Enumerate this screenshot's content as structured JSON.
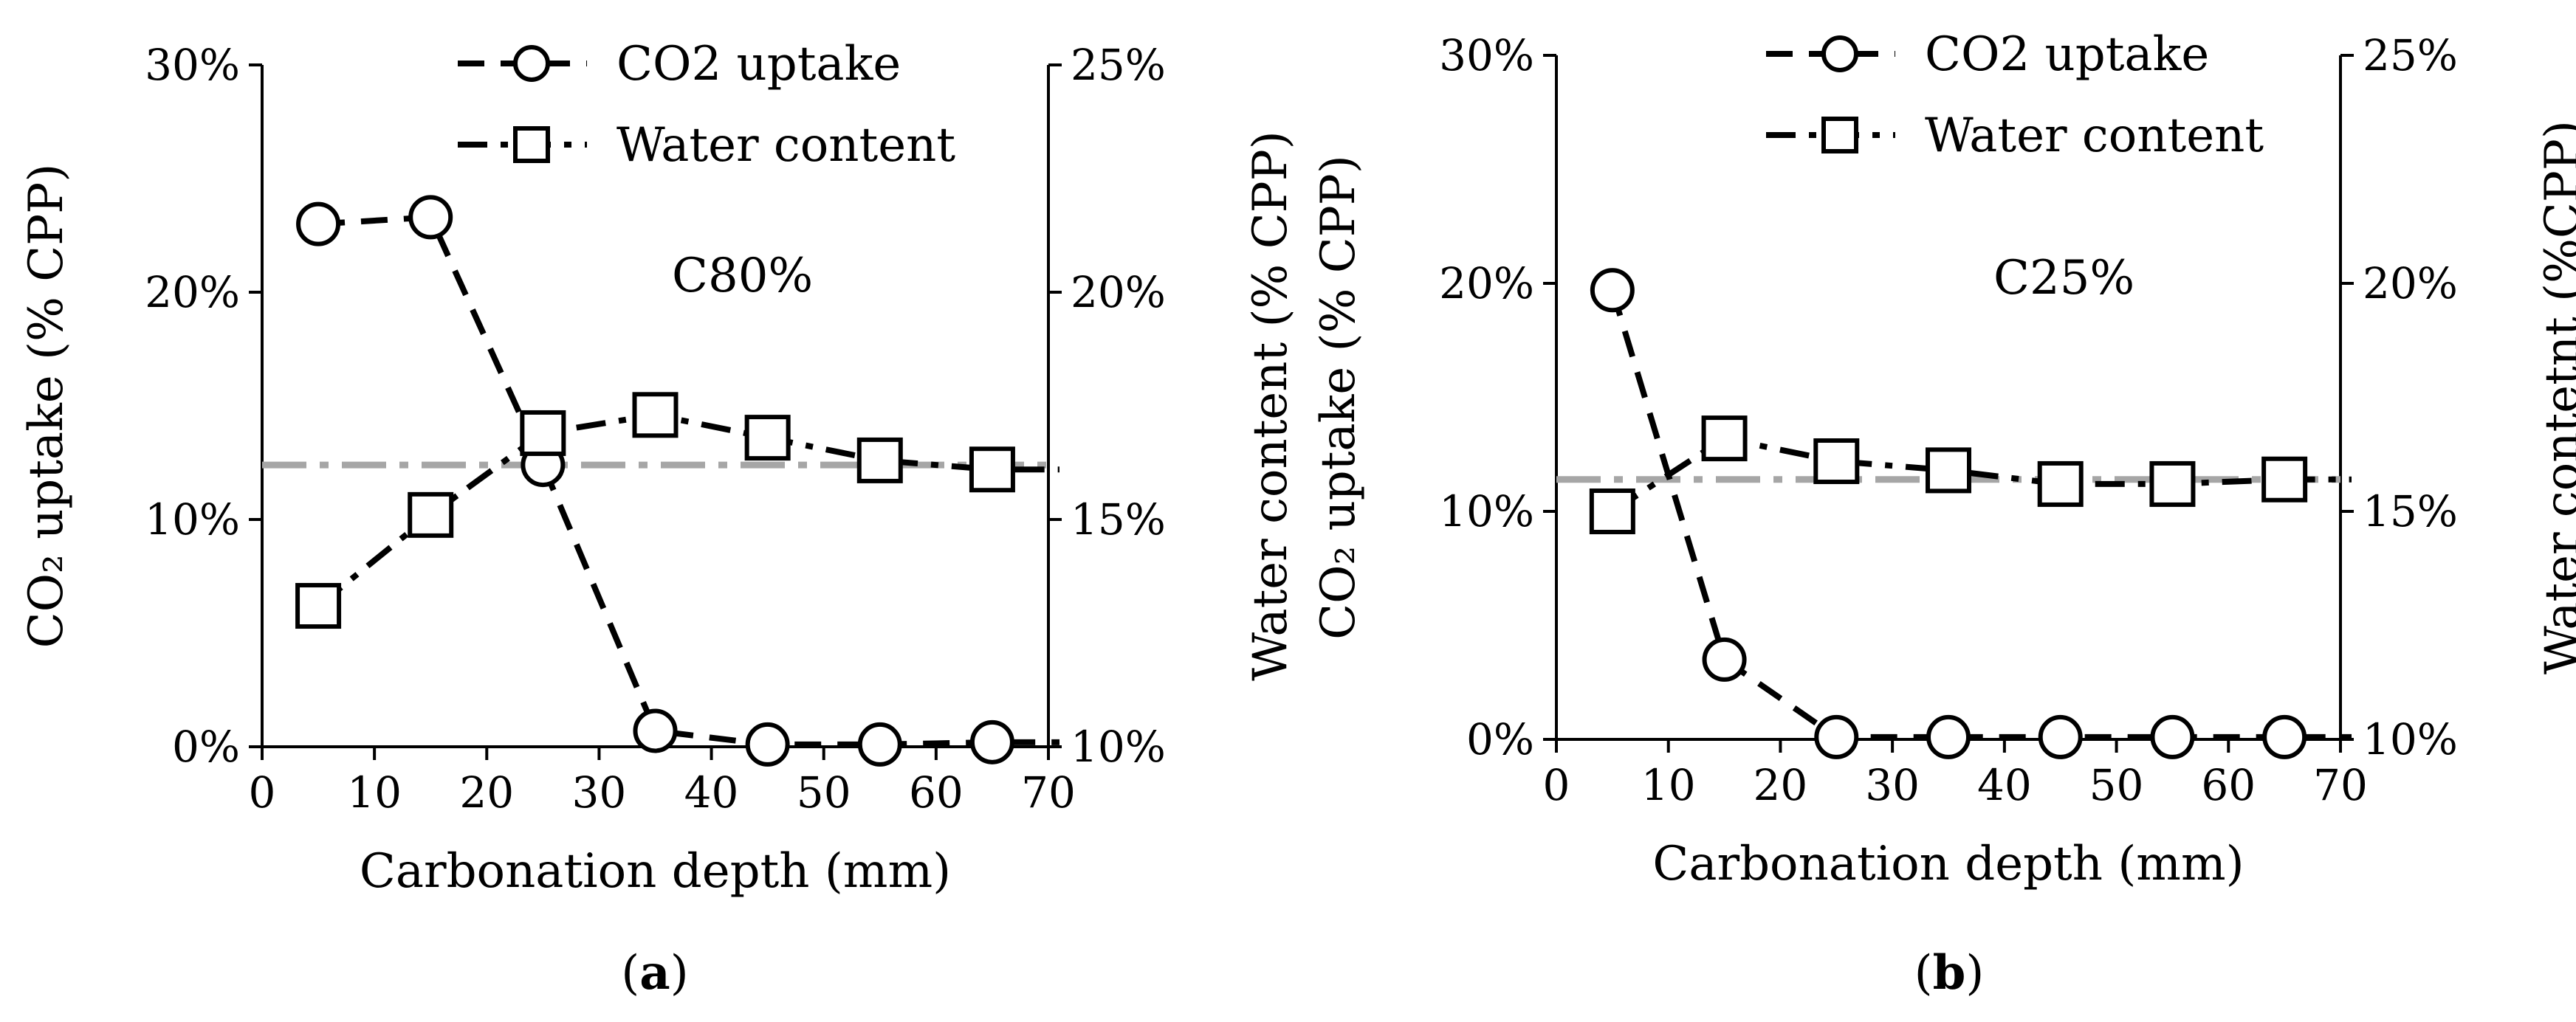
{
  "chart_data": [
    {
      "type": "line",
      "panel_label": "a",
      "annotation": "C80%",
      "xlabel": "Carbonation depth (mm)",
      "ylabel_left": "CO₂ uptake (% CPP)",
      "ylabel_right": "Water content (% CPP)",
      "x_ticks": [
        "0",
        "10",
        "20",
        "30",
        "40",
        "50",
        "60",
        "70"
      ],
      "y_left_ticks": [
        "0%",
        "10%",
        "20%",
        "30%"
      ],
      "y_right_ticks": [
        "10%",
        "15%",
        "20%",
        "25%"
      ],
      "xlim": [
        0,
        70
      ],
      "ylim_left": [
        0,
        30
      ],
      "ylim_right": [
        10,
        25
      ],
      "grid": false,
      "legend": "top",
      "series": [
        {
          "name": "CO2 uptake",
          "axis": "left",
          "marker": "circle",
          "line": "dash",
          "x": [
            5,
            15,
            25,
            35,
            45,
            55,
            65
          ],
          "y": [
            23.0,
            23.3,
            12.4,
            0.7,
            0.1,
            0.1,
            0.2
          ]
        },
        {
          "name": "Water content",
          "axis": "right",
          "marker": "square",
          "line": "dashdot",
          "x": [
            5,
            15,
            25,
            35,
            45,
            55,
            65
          ],
          "y": [
            13.1,
            15.1,
            16.9,
            17.3,
            16.8,
            16.3,
            16.1
          ]
        }
      ],
      "reference_line": {
        "axis": "right",
        "y": 16.2,
        "color": "#a6a6a6"
      }
    },
    {
      "type": "line",
      "panel_label": "b",
      "annotation": "C25%",
      "xlabel": "Carbonation depth (mm)",
      "ylabel_left": "CO₂ uptake (% CPP)",
      "ylabel_right": "Water contetnt (%CPP)",
      "x_ticks": [
        "0",
        "10",
        "20",
        "30",
        "40",
        "50",
        "60",
        "70"
      ],
      "y_left_ticks": [
        "0%",
        "10%",
        "20%",
        "30%"
      ],
      "y_right_ticks": [
        "10%",
        "15%",
        "20%",
        "25%"
      ],
      "xlim": [
        0,
        70
      ],
      "ylim_left": [
        0,
        30
      ],
      "ylim_right": [
        10,
        25
      ],
      "grid": false,
      "legend": "top",
      "series": [
        {
          "name": "CO2 uptake",
          "axis": "left",
          "marker": "circle",
          "line": "dash",
          "x": [
            5,
            15,
            25,
            35,
            45,
            55,
            65
          ],
          "y": [
            19.7,
            3.5,
            0.1,
            0.1,
            0.1,
            0.1,
            0.1
          ]
        },
        {
          "name": "Water content",
          "axis": "right",
          "marker": "square",
          "line": "dashdot",
          "x": [
            5,
            15,
            25,
            35,
            45,
            55,
            65
          ],
          "y": [
            15.0,
            16.6,
            16.1,
            15.9,
            15.6,
            15.6,
            15.7
          ]
        }
      ],
      "reference_line": {
        "axis": "right",
        "y": 15.7,
        "color": "#a6a6a6"
      }
    }
  ],
  "colors": {
    "series": "#000000",
    "reference": "#a6a6a6",
    "background": "#ffffff"
  }
}
